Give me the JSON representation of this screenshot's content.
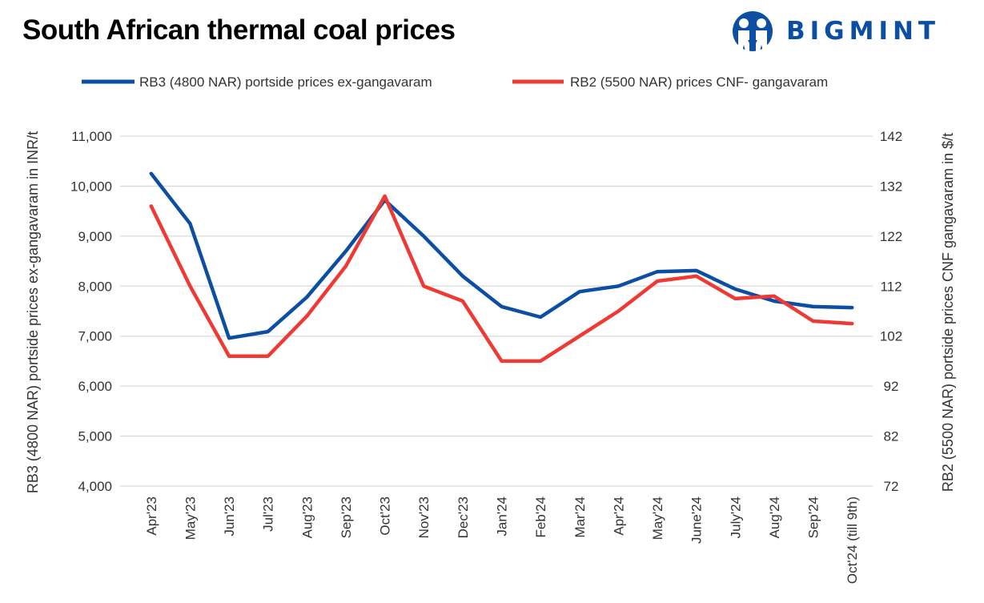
{
  "title": "South African thermal coal prices",
  "logo": {
    "text": "BIGMINT"
  },
  "colors": {
    "blue": "#0b4ea2",
    "red": "#ee3a35",
    "grid": "#d9d9d9"
  },
  "chart_data": {
    "type": "line",
    "title": "South African thermal coal prices",
    "categories": [
      "Apr'23",
      "May'23",
      "Jun'23",
      "Jul'23",
      "Aug'23",
      "Sep'23",
      "Oct'23",
      "Nov'23",
      "Dec'23",
      "Jan'24",
      "Feb'24",
      "Mar'24",
      "Apr'24",
      "May'24",
      "June'24",
      "July'24",
      "Aug'24",
      "Sep'24",
      "Oct'24 (till 9th)"
    ],
    "series": [
      {
        "name": "RB3 (4800 NAR) portside prices ex-gangavaram",
        "axis": "left",
        "values": [
          10250,
          9250,
          6960,
          7090,
          7780,
          8700,
          9720,
          9000,
          8200,
          7590,
          7380,
          7890,
          8000,
          8290,
          8310,
          7940,
          7700,
          7590,
          7570
        ]
      },
      {
        "name": "RB2 (5500 NAR) prices CNF- gangavaram",
        "axis": "right",
        "values": [
          128,
          112,
          98,
          98,
          106,
          116,
          130,
          112,
          109,
          97,
          97,
          102,
          107,
          113,
          114,
          109.5,
          110,
          105,
          104.5
        ]
      }
    ],
    "ylabel_left": "RB3 (4800 NAR) portside prices ex-gangavaram  in INR/t",
    "ylabel_right": "RB2 (5500 NAR) portside prices CNF  gangavaram  in $/t",
    "ylim_left": [
      4000,
      11000
    ],
    "yticks_left": [
      "4,000",
      "5,000",
      "6,000",
      "7,000",
      "8,000",
      "9,000",
      "10,000",
      "11,000"
    ],
    "ylim_right": [
      72,
      142
    ],
    "yticks_right": [
      "72",
      "82",
      "92",
      "102",
      "112",
      "122",
      "132",
      "142"
    ],
    "grid": true,
    "legend": "top"
  }
}
